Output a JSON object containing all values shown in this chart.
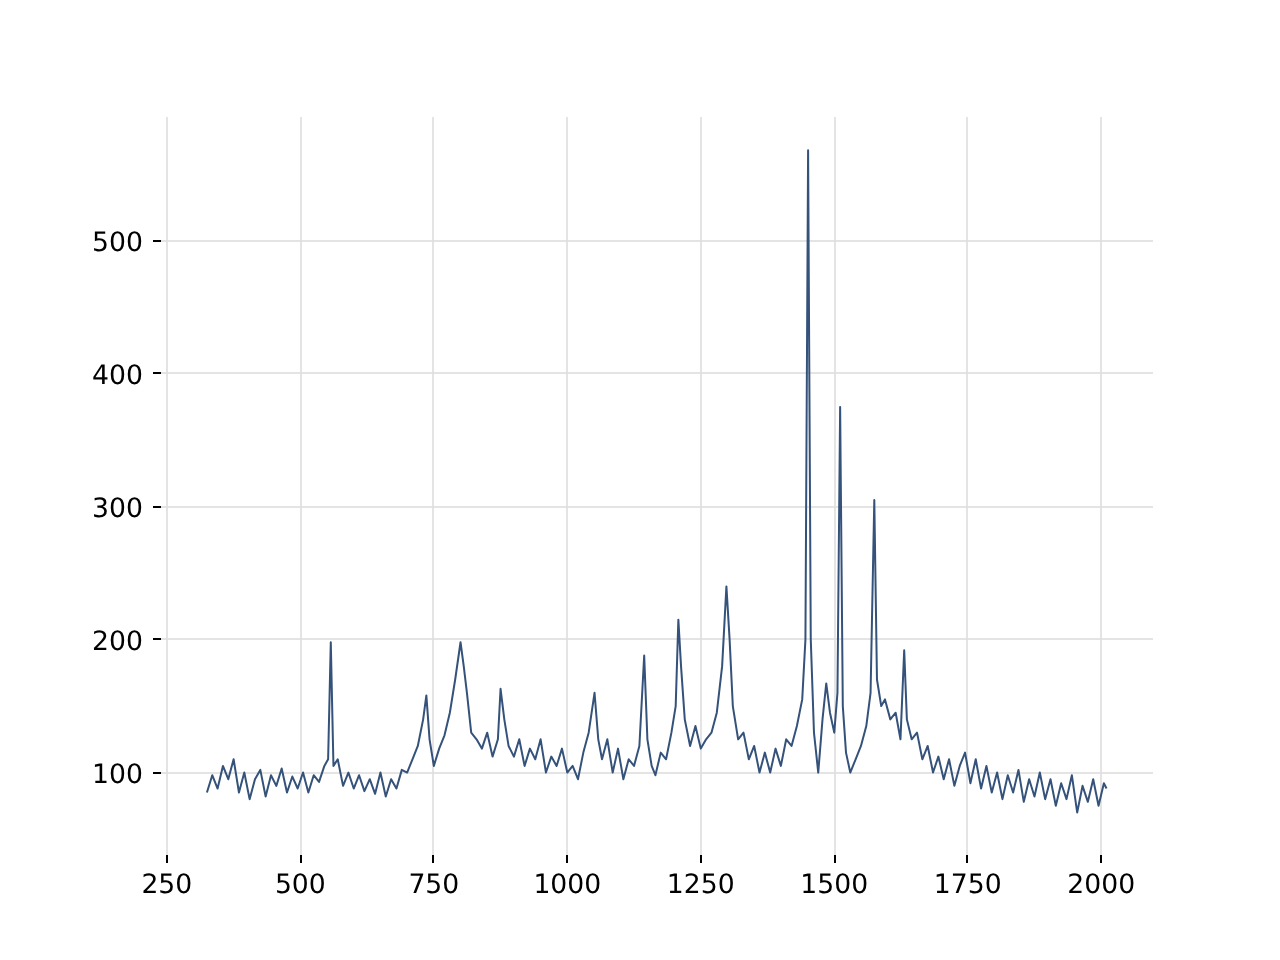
{
  "chart_data": {
    "type": "line",
    "color": "#34527a",
    "xlim": [
      239,
      2097
    ],
    "ylim": [
      38,
      593
    ],
    "xticks": [
      250,
      500,
      750,
      1000,
      1250,
      1500,
      1750,
      2000
    ],
    "yticks": [
      100,
      200,
      300,
      400,
      500
    ],
    "grid": true,
    "marker": "none",
    "line_style": "solid",
    "x": [
      325,
      335,
      345,
      355,
      365,
      375,
      385,
      395,
      405,
      415,
      425,
      435,
      445,
      455,
      465,
      475,
      485,
      495,
      505,
      515,
      525,
      535,
      545,
      552,
      557,
      562,
      570,
      580,
      590,
      600,
      610,
      620,
      630,
      640,
      650,
      660,
      670,
      680,
      690,
      700,
      710,
      720,
      730,
      736,
      742,
      750,
      760,
      770,
      780,
      790,
      800,
      806,
      812,
      820,
      830,
      840,
      850,
      860,
      870,
      875,
      882,
      890,
      900,
      910,
      920,
      930,
      940,
      950,
      960,
      970,
      980,
      990,
      1000,
      1010,
      1020,
      1030,
      1040,
      1051,
      1058,
      1065,
      1075,
      1085,
      1095,
      1105,
      1115,
      1125,
      1135,
      1144,
      1150,
      1158,
      1165,
      1175,
      1185,
      1195,
      1203,
      1208,
      1213,
      1220,
      1230,
      1240,
      1250,
      1260,
      1270,
      1280,
      1290,
      1298,
      1304,
      1310,
      1320,
      1330,
      1340,
      1350,
      1360,
      1370,
      1380,
      1390,
      1400,
      1410,
      1420,
      1430,
      1440,
      1446,
      1451,
      1456,
      1462,
      1470,
      1478,
      1485,
      1492,
      1500,
      1506,
      1511,
      1516,
      1522,
      1530,
      1540,
      1550,
      1560,
      1568,
      1575,
      1580,
      1588,
      1595,
      1605,
      1615,
      1624,
      1631,
      1636,
      1645,
      1655,
      1665,
      1675,
      1685,
      1695,
      1705,
      1715,
      1725,
      1735,
      1745,
      1755,
      1765,
      1775,
      1785,
      1795,
      1805,
      1815,
      1825,
      1835,
      1845,
      1855,
      1865,
      1875,
      1885,
      1895,
      1905,
      1915,
      1925,
      1935,
      1945,
      1955,
      1965,
      1975,
      1985,
      1995,
      2005,
      2010
    ],
    "values": [
      85,
      98,
      88,
      105,
      95,
      110,
      85,
      100,
      80,
      95,
      102,
      82,
      98,
      90,
      103,
      85,
      97,
      88,
      100,
      85,
      98,
      93,
      105,
      110,
      198,
      105,
      110,
      90,
      100,
      88,
      98,
      86,
      95,
      84,
      100,
      82,
      95,
      88,
      102,
      100,
      110,
      120,
      140,
      158,
      125,
      105,
      118,
      128,
      145,
      170,
      198,
      180,
      160,
      130,
      125,
      118,
      130,
      112,
      125,
      163,
      140,
      120,
      112,
      125,
      105,
      118,
      110,
      125,
      100,
      112,
      105,
      118,
      100,
      105,
      95,
      115,
      130,
      160,
      125,
      110,
      125,
      100,
      118,
      95,
      110,
      105,
      120,
      188,
      125,
      105,
      98,
      115,
      110,
      130,
      150,
      215,
      180,
      140,
      120,
      135,
      118,
      125,
      130,
      145,
      180,
      240,
      200,
      150,
      125,
      130,
      110,
      120,
      100,
      115,
      100,
      118,
      105,
      125,
      120,
      135,
      155,
      200,
      568,
      200,
      130,
      100,
      140,
      167,
      145,
      130,
      160,
      375,
      150,
      115,
      100,
      110,
      120,
      135,
      160,
      305,
      170,
      150,
      155,
      140,
      145,
      125,
      192,
      140,
      125,
      130,
      110,
      120,
      100,
      112,
      95,
      110,
      90,
      105,
      115,
      92,
      110,
      88,
      105,
      85,
      100,
      80,
      98,
      85,
      102,
      78,
      95,
      82,
      100,
      80,
      95,
      75,
      92,
      80,
      98,
      70,
      90,
      78,
      95,
      75,
      92,
      88
    ]
  }
}
